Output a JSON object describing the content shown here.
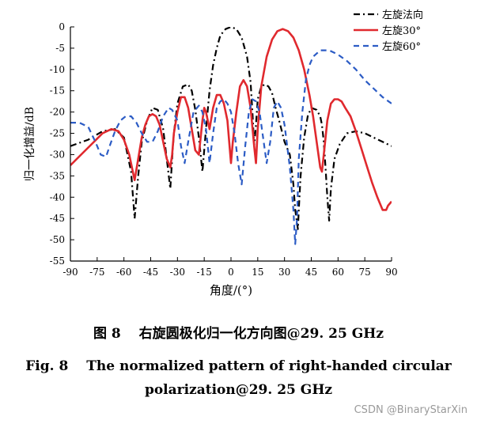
{
  "chart_data": {
    "type": "line",
    "xlabel": "角度/(°)",
    "ylabel": "归一化增益/dB",
    "xlim": [
      -90,
      90
    ],
    "ylim": [
      -55,
      0
    ],
    "xticks": [
      -90,
      -75,
      -60,
      -45,
      -30,
      -15,
      0,
      15,
      30,
      45,
      60,
      75,
      90
    ],
    "yticks": [
      0,
      -5,
      -10,
      -15,
      -20,
      -25,
      -30,
      -35,
      -40,
      -45,
      -50,
      -55
    ],
    "grid": false,
    "legend_position": "top-right",
    "series": [
      {
        "name": "左旋法向",
        "color": "#000000",
        "dash": "dash-dot",
        "x": [
          -90,
          -80,
          -72,
          -65,
          -60,
          -56,
          -54,
          -52,
          -50,
          -47,
          -44,
          -41,
          -38,
          -36,
          -34,
          -33,
          -32,
          -30,
          -27,
          -24,
          -22,
          -20,
          -18,
          -16,
          -14,
          -12,
          -10,
          -8,
          -6,
          -3,
          0,
          3,
          6,
          9,
          11,
          12,
          13,
          14,
          15,
          17,
          19,
          21,
          23,
          25,
          27,
          30,
          33,
          35,
          36,
          37,
          37.5,
          38,
          39,
          41,
          43,
          45,
          48,
          50,
          51,
          52,
          53,
          54,
          55,
          56,
          58,
          61,
          65,
          70,
          75,
          80,
          85,
          90
        ],
        "y": [
          -28,
          -26.5,
          -24.5,
          -24,
          -26,
          -34,
          -45,
          -35,
          -27,
          -22,
          -19,
          -19.5,
          -24,
          -31,
          -38,
          -31,
          -25,
          -18,
          -14,
          -13.5,
          -15,
          -19.5,
          -26,
          -34,
          -24,
          -15,
          -9,
          -5,
          -2,
          -0.5,
          0,
          -0.5,
          -2.5,
          -7,
          -13,
          -20,
          -28,
          -23,
          -17,
          -14,
          -13.5,
          -14,
          -15.5,
          -19,
          -22,
          -27,
          -30,
          -37,
          -43,
          -46,
          -47.5,
          -43,
          -35,
          -26,
          -21,
          -19,
          -19.5,
          -21,
          -23,
          -27,
          -33,
          -40,
          -45.5,
          -38,
          -31,
          -27.5,
          -25,
          -24.5,
          -25,
          -26,
          -27,
          -28
        ]
      },
      {
        "name": "左旋30°",
        "color": "#e0292e",
        "dash": "solid",
        "x": [
          -90,
          -84,
          -78,
          -72,
          -67,
          -63,
          -60,
          -57,
          -55,
          -54,
          -52,
          -50,
          -48,
          -46,
          -44,
          -42,
          -40,
          -38,
          -36,
          -34,
          -33,
          -32,
          -30,
          -28,
          -26,
          -24,
          -22,
          -20,
          -18,
          -16,
          -15,
          -14,
          -12,
          -10,
          -8,
          -6,
          -4,
          -2,
          0,
          1,
          3,
          5,
          7,
          9,
          11,
          13,
          14,
          15,
          17,
          20,
          23,
          26,
          29,
          32,
          35,
          38,
          41,
          44,
          46,
          48,
          50,
          51,
          52,
          54,
          56,
          58,
          60,
          62,
          64,
          67,
          70,
          73,
          76,
          79,
          82,
          85,
          87,
          88,
          90
        ],
        "y": [
          -32.5,
          -30,
          -27.5,
          -25,
          -24,
          -24.5,
          -26.5,
          -30,
          -34,
          -36,
          -31,
          -26,
          -23,
          -21,
          -20.5,
          -21,
          -23,
          -27,
          -31,
          -33,
          -30,
          -25,
          -20,
          -16.5,
          -16.5,
          -19,
          -24,
          -29,
          -30,
          -22,
          -19,
          -20,
          -24,
          -19,
          -16,
          -16,
          -18,
          -22,
          -32,
          -27,
          -20,
          -14,
          -12.5,
          -14,
          -19,
          -28,
          -32,
          -24,
          -14,
          -7,
          -3,
          -1,
          -0.5,
          -1,
          -2.5,
          -5.5,
          -10,
          -16,
          -21,
          -27,
          -33,
          -34,
          -30,
          -22,
          -18,
          -17,
          -17,
          -17.5,
          -19,
          -21,
          -24.5,
          -28.5,
          -32.5,
          -36.5,
          -40,
          -43,
          -43,
          -42,
          -41
        ]
      },
      {
        "name": "左旋60°",
        "color": "#2c5cc5",
        "dash": "dash",
        "x": [
          -90,
          -85,
          -80,
          -76,
          -73,
          -70,
          -68,
          -65,
          -62,
          -59,
          -56,
          -53,
          -50,
          -47,
          -44,
          -41,
          -38,
          -35,
          -33,
          -30,
          -28,
          -26,
          -24,
          -21,
          -18,
          -16,
          -14,
          -12,
          -10,
          -8,
          -6,
          -4,
          -2,
          0,
          2,
          4,
          6,
          8,
          10,
          12,
          14,
          16,
          18,
          20,
          22,
          24,
          26,
          28,
          30,
          33,
          35,
          36,
          37,
          38,
          40,
          42,
          44,
          46,
          50,
          55,
          60,
          65,
          70,
          75,
          80,
          85,
          90
        ],
        "y": [
          -22.5,
          -22.5,
          -23.5,
          -27,
          -30,
          -30.5,
          -28,
          -24.5,
          -22,
          -21,
          -21,
          -22.5,
          -25,
          -27,
          -27,
          -24.5,
          -21,
          -19,
          -19.5,
          -22,
          -28,
          -32,
          -27,
          -20,
          -18.5,
          -20,
          -24,
          -32,
          -25,
          -19,
          -17.5,
          -17,
          -18,
          -20,
          -25,
          -32,
          -37,
          -28,
          -20,
          -17,
          -17.5,
          -20,
          -26,
          -32,
          -27,
          -19,
          -17.5,
          -19,
          -23,
          -33,
          -43,
          -51,
          -45,
          -31,
          -20,
          -12.5,
          -9,
          -7,
          -5.5,
          -5.5,
          -6.5,
          -8,
          -10,
          -12.5,
          -14.5,
          -16.5,
          -18
        ]
      }
    ]
  },
  "caption": {
    "cn": "图 8　 右旋圆极化归一化方向图@29. 25 GHz",
    "en_line1": "Fig. 8　 The normalized pattern of right-handed circular",
    "en_line2": "polarization@29. 25 GHz"
  },
  "watermark": "CSDN @BinaryStarXin"
}
